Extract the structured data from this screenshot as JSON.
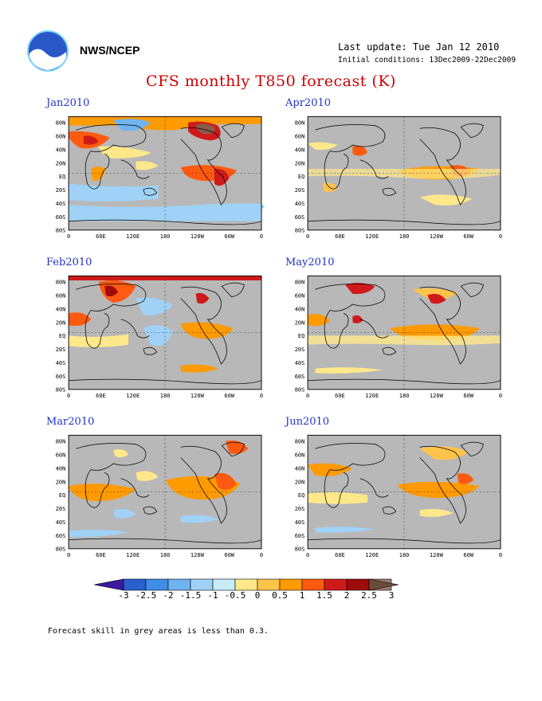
{
  "header": {
    "agency": "NWS/NCEP",
    "last_update": "Last update: Tue Jan 12 2010",
    "initial_conditions": "Initial conditions: 13Dec2009-22Dec2009",
    "title": "CFS monthly T850 forecast (K)"
  },
  "map_axes": {
    "lat_labels": [
      "80N",
      "60N",
      "40N",
      "20N",
      "EQ",
      "20S",
      "40S",
      "60S",
      "80S"
    ],
    "lon_labels": [
      "0",
      "60E",
      "120E",
      "180",
      "120W",
      "60W",
      "0"
    ]
  },
  "panels": [
    {
      "label": "Jan2010"
    },
    {
      "label": "Apr2010"
    },
    {
      "label": "Feb2010"
    },
    {
      "label": "May2010"
    },
    {
      "label": "Mar2010"
    },
    {
      "label": "Jun2010"
    }
  ],
  "colorbar": {
    "tick_labels": [
      "-3",
      "-2.5",
      "-2",
      "-1.5",
      "-1",
      "-0.5",
      "0",
      "0.5",
      "1",
      "1.5",
      "2",
      "2.5",
      "3"
    ],
    "colors": [
      "#3a1aa0",
      "#2a5fcf",
      "#3f8ee6",
      "#6fb3f0",
      "#9fd2f6",
      "#c8ecf9",
      "#ffe88a",
      "#ffc34a",
      "#ff9a00",
      "#ff5a10",
      "#d01a1a",
      "#9e0b0b",
      "#9c7c6c",
      "#6a4a3a"
    ]
  },
  "footnote": "Forecast skill in grey areas is less than 0.3."
}
